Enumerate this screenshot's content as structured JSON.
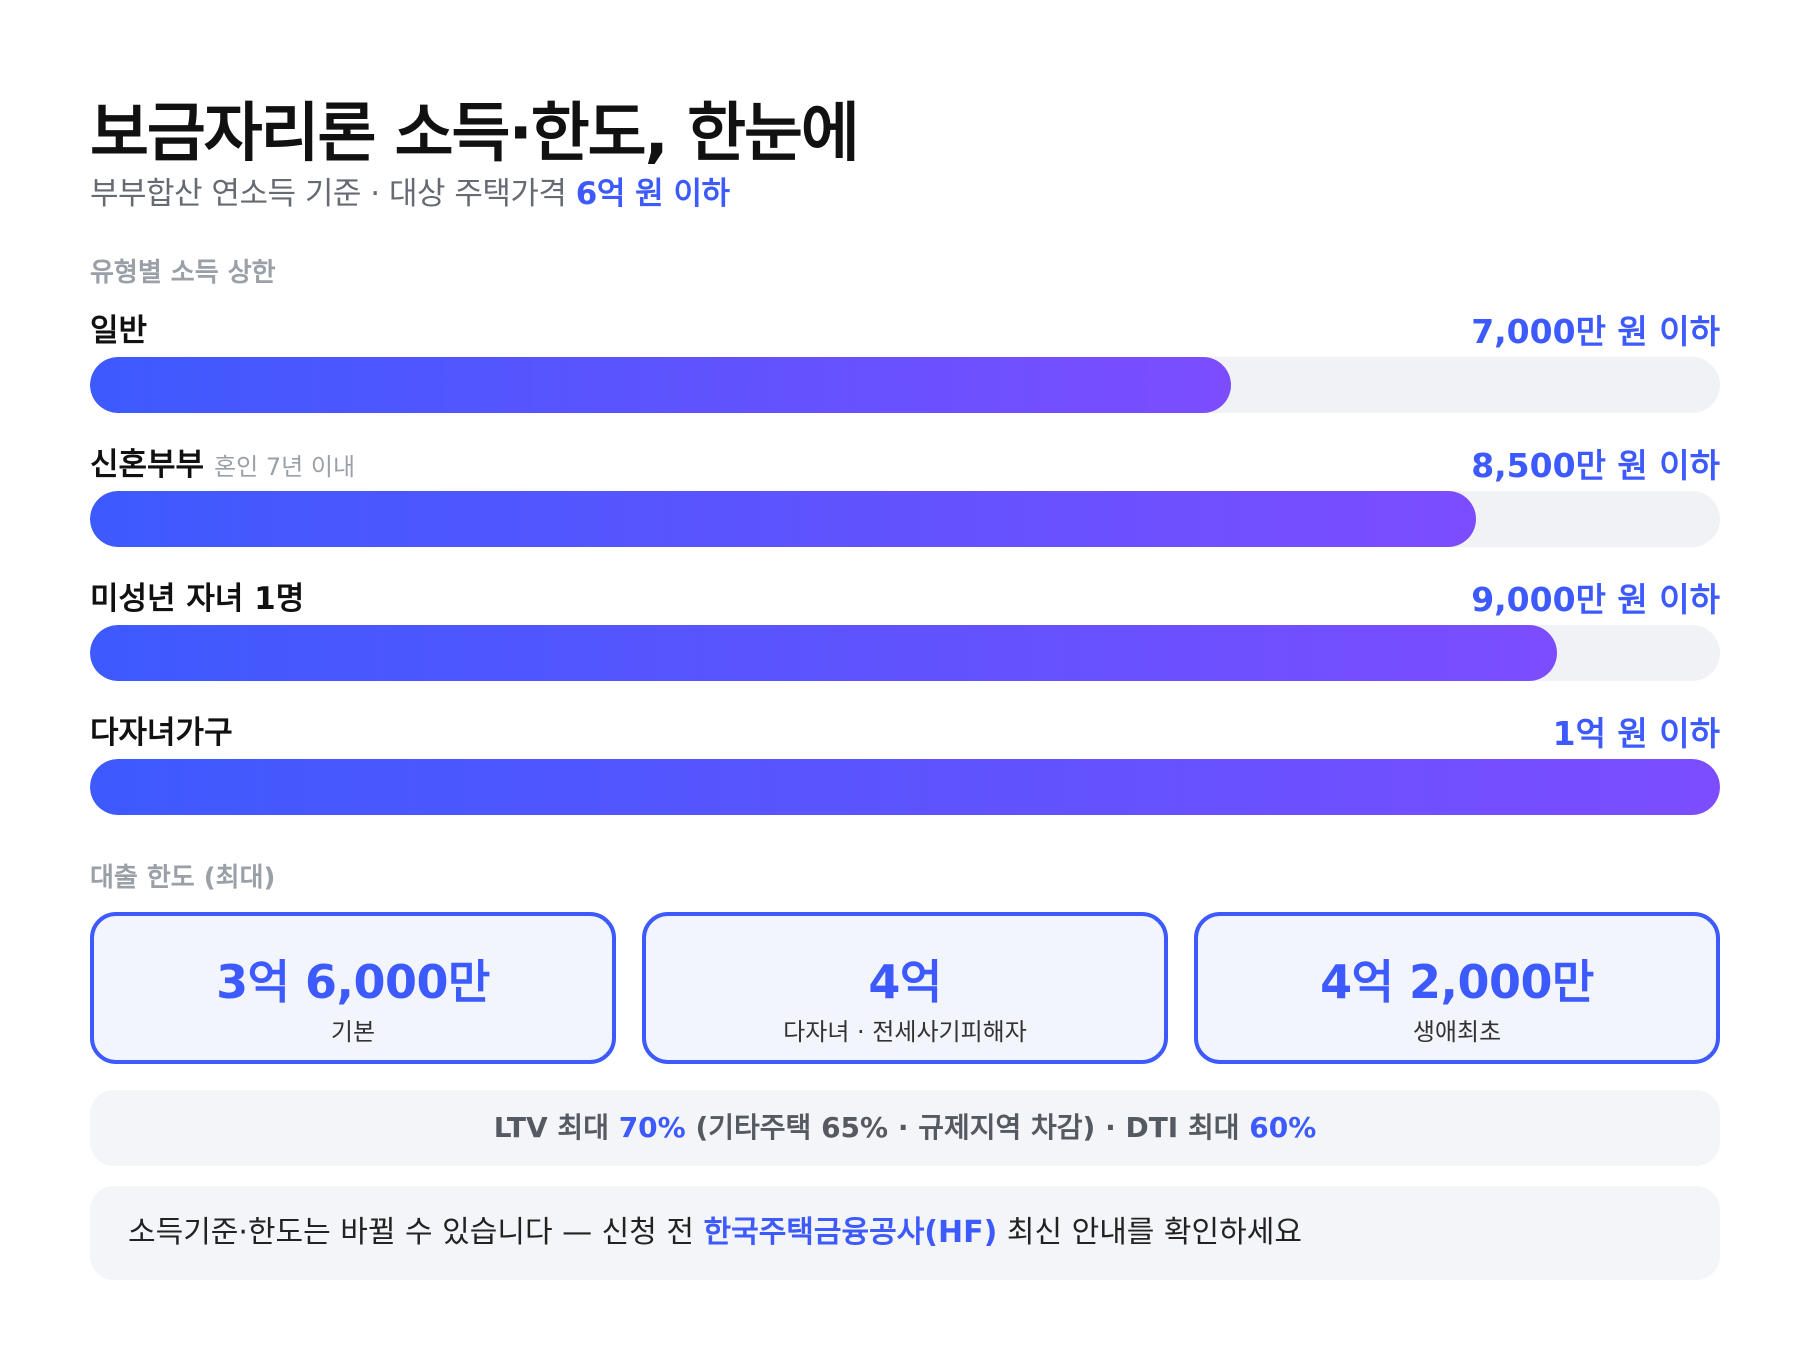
{
  "header": {
    "title": "보금자리론 소득·한도, 한눈에",
    "subtitle_prefix": "부부합산 연소득 기준 · 대상 주택가격 ",
    "subtitle_accent": "6억 원 이하"
  },
  "income_section": {
    "label": "유형별 소득 상한",
    "rows": [
      {
        "label": "일반",
        "note": "",
        "value": "7,000만 원 이하",
        "fraction": 0.7
      },
      {
        "label": "신혼부부",
        "note": "혼인 7년 이내",
        "value": "8,500만 원 이하",
        "fraction": 0.85
      },
      {
        "label": "미성년 자녀 1명",
        "note": "",
        "value": "9,000만 원 이하",
        "fraction": 0.9
      },
      {
        "label": "다자녀가구",
        "note": "",
        "value": "1억 원 이하",
        "fraction": 1.0
      }
    ]
  },
  "loan_section": {
    "label": "대출 한도 (최대)",
    "cards": [
      {
        "value": "3억 6,000만",
        "label": "기본"
      },
      {
        "value": "4억",
        "label": "다자녀 · 전세사기피해자"
      },
      {
        "value": "4억 2,000만",
        "label": "생애최초"
      }
    ]
  },
  "ltv": {
    "p1": "LTV 최대 ",
    "a1": "70%",
    "p2": " (기타주택 65% · 규제지역 차감) · DTI 최대 ",
    "a2": "60%"
  },
  "notice": {
    "p1": "소득기준·한도는 바뀔 수 있습니다 — 신청 전 ",
    "accent": "한국주택금융공사(HF)",
    "p2": " 최신 안내를 확인하세요"
  },
  "colors": {
    "accent": "#3d5afe",
    "gradient_start": "#3d5afe",
    "gradient_end": "#7c4dff",
    "track": "#f1f2f6"
  }
}
